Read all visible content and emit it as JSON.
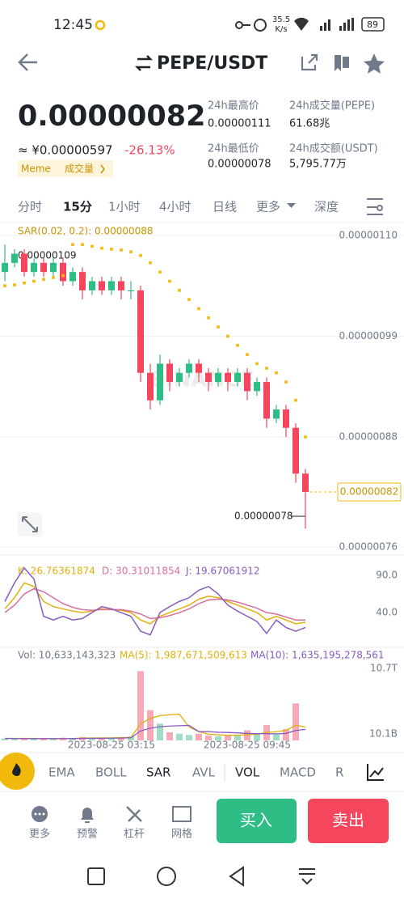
{
  "status_bar": {
    "time": "12:45",
    "speed": "35.5",
    "speed_unit": "K/s",
    "battery": "89"
  },
  "header": {
    "title": "PEPE/USDT"
  },
  "price": {
    "last": "0.00000082",
    "cny": "≈ ¥0.00000597",
    "change": "-26.13%",
    "tags": [
      "Meme",
      "成交量"
    ]
  },
  "stats": [
    {
      "label": "24h最高价",
      "value": "0.00000111"
    },
    {
      "label": "24h成交量(PEPE)",
      "value": "61.68兆"
    },
    {
      "label": "24h最低价",
      "value": "0.00000078"
    },
    {
      "label": "24h成交额(USDT)",
      "value": "5,795.77万"
    }
  ],
  "tabs": [
    "分时",
    "15分",
    "1小时",
    "4小时",
    "日线",
    "更多",
    "深度"
  ],
  "chart_data": [
    {
      "type": "candlestick",
      "watermark": "BINANCE",
      "up_color": "#2ebd85",
      "down_color": "#f6465d",
      "open": [
        1.06e-07,
        1.07e-07,
        1.08e-07,
        1.06e-07,
        1.07e-07,
        1.06e-07,
        1.07e-07,
        1.05e-07,
        1.06e-07,
        1.04e-07,
        1.05e-07,
        1.04e-07,
        1.05e-07,
        1.04e-07,
        1.04e-07,
        9.5e-08,
        9.2e-08,
        9.6e-08,
        9.4e-08,
        9.5e-08,
        9.6e-08,
        9.5e-08,
        9.4e-08,
        9.5e-08,
        9.4e-08,
        9.5e-08,
        9.3e-08,
        9.4e-08,
        9e-08,
        9.1e-08,
        8.9e-08,
        8.4e-08
      ],
      "high": [
        1.09e-07,
        1.085e-07,
        1.085e-07,
        1.075e-07,
        1.075e-07,
        1.075e-07,
        1.075e-07,
        1.065e-07,
        1.065e-07,
        1.055e-07,
        1.055e-07,
        1.055e-07,
        1.055e-07,
        1.05e-07,
        1.045e-07,
        9.6e-08,
        9.7e-08,
        9.65e-08,
        9.55e-08,
        9.65e-08,
        9.65e-08,
        9.55e-08,
        9.55e-08,
        9.55e-08,
        9.55e-08,
        9.55e-08,
        9.45e-08,
        9.45e-08,
        9.15e-08,
        9.15e-08,
        8.95e-08,
        8.45e-08
      ],
      "low": [
        1.05e-07,
        1.065e-07,
        1.055e-07,
        1.055e-07,
        1.055e-07,
        1.055e-07,
        1.045e-07,
        1.045e-07,
        1.03e-07,
        1.035e-07,
        1.035e-07,
        1.035e-07,
        1.03e-07,
        1.03e-07,
        9.4e-08,
        9.1e-08,
        9.15e-08,
        9.3e-08,
        9.35e-08,
        9.45e-08,
        9.4e-08,
        9.3e-08,
        9.35e-08,
        9.3e-08,
        9.35e-08,
        9.2e-08,
        9.25e-08,
        8.9e-08,
        8.95e-08,
        8.8e-08,
        8.3e-08,
        7.8e-08
      ],
      "close": [
        1.07e-07,
        1.08e-07,
        1.06e-07,
        1.07e-07,
        1.06e-07,
        1.07e-07,
        1.05e-07,
        1.06e-07,
        1.04e-07,
        1.05e-07,
        1.04e-07,
        1.05e-07,
        1.04e-07,
        1.04e-07,
        9.5e-08,
        9.2e-08,
        9.6e-08,
        9.4e-08,
        9.5e-08,
        9.6e-08,
        9.5e-08,
        9.4e-08,
        9.5e-08,
        9.4e-08,
        9.5e-08,
        9.3e-08,
        9.4e-08,
        9e-08,
        9.1e-08,
        8.9e-08,
        8.4e-08,
        8.2e-08
      ],
      "sar": {
        "name": "SAR(0.02, 0.2): 0.00000088",
        "color": "#f0b90b",
        "values": [
          1.045e-07,
          1.046e-07,
          1.048e-07,
          1.05e-07,
          1.052e-07,
          1.054e-07,
          1.056e-07,
          1.09e-07,
          1.09e-07,
          1.088e-07,
          1.086e-07,
          1.085e-07,
          1.084e-07,
          1.082e-07,
          1.078e-07,
          1.07e-07,
          1.06e-07,
          1.05e-07,
          1.04e-07,
          1.03e-07,
          1.02e-07,
          1.01e-07,
          1e-07,
          9.9e-08,
          9.8e-08,
          9.7e-08,
          9.6e-08,
          9.55e-08,
          9.5e-08,
          9.4e-08,
          9.2e-08,
          8.8e-08
        ]
      },
      "annotations": [
        "0.00000109",
        "0.00000078"
      ],
      "last_price": {
        "value": 8.2e-08,
        "label": "0.00000082"
      },
      "ylim": [
        7.52e-08,
        1.114e-07
      ],
      "yticks": [
        {
          "value": 1.1e-07,
          "label": "0.00000110"
        },
        {
          "value": 9.9e-08,
          "label": "0.00000099"
        },
        {
          "value": 8.8e-08,
          "label": "0.00000088"
        },
        {
          "value": 7.6e-08,
          "label": "0.00000076"
        }
      ],
      "grid": true
    },
    {
      "type": "line",
      "ylim": [
        -6.7,
        102
      ],
      "yticks": [
        {
          "value": 90,
          "label": "90.0"
        },
        {
          "value": 40,
          "label": "40.0"
        }
      ],
      "series": [
        {
          "name": "K: 26.76361874",
          "color": "#e0b00c",
          "values": [
            45,
            60,
            80,
            75,
            55,
            48,
            45,
            42,
            40,
            42,
            45,
            44,
            43,
            40,
            30,
            25,
            35,
            40,
            45,
            50,
            58,
            62,
            60,
            55,
            50,
            45,
            40,
            30,
            35,
            30,
            25,
            27
          ]
        },
        {
          "name": "D: 30.31011854",
          "color": "#d66ea0",
          "values": [
            40,
            50,
            65,
            72,
            68,
            60,
            52,
            47,
            44,
            43,
            44,
            44,
            44,
            42,
            38,
            32,
            33,
            36,
            40,
            45,
            52,
            57,
            58,
            57,
            54,
            50,
            46,
            40,
            38,
            34,
            30,
            30
          ]
        },
        {
          "name": "J: 19.67061912",
          "color": "#8a5bbd",
          "values": [
            55,
            80,
            100,
            85,
            35,
            30,
            35,
            30,
            32,
            40,
            48,
            45,
            40,
            35,
            15,
            10,
            40,
            48,
            55,
            60,
            70,
            75,
            65,
            50,
            42,
            35,
            28,
            12,
            30,
            20,
            15,
            20
          ]
        }
      ]
    },
    {
      "type": "bar",
      "ylim": [
        0,
        10700000000000.0
      ],
      "yticks": [
        {
          "value": 10700000000000.0,
          "label": "10.7T"
        },
        {
          "value": 10100000000.0,
          "label": "10.1B"
        }
      ],
      "xticks": [
        {
          "value": 11,
          "label": "2023-08-25 03:15"
        },
        {
          "value": 25,
          "label": "2023-08-25 09:45"
        }
      ],
      "series": [
        {
          "name": "Vol: 10,633,143,323",
          "up_color": "#a3dcc4",
          "down_color": "#f5aab6",
          "values": [
            300000000000.0,
            200000000000.0,
            300000000000.0,
            200000000000.0,
            300000000000.0,
            200000000000.0,
            400000000000.0,
            300000000000.0,
            500000000000.0,
            400000000000.0,
            300000000000.0,
            400000000000.0,
            500000000000.0,
            600000000000.0,
            10300000000000.0,
            4500000000000.0,
            2500000000000.0,
            1200000000000.0,
            1000000000000.0,
            800000000000.0,
            1000000000000.0,
            700000000000.0,
            600000000000.0,
            800000000000.0,
            700000000000.0,
            1500000000000.0,
            1000000000000.0,
            2300000000000.0,
            900000000000.0,
            1700000000000.0,
            5500000000000.0,
            10633143323
          ]
        }
      ],
      "lines": [
        {
          "name": "MA(5): 1,987,671,509,613",
          "color": "#e0b00c",
          "values": [
            300000000000.0,
            300000000000.0,
            300000000000.0,
            300000000000.0,
            260000000000.0,
            240000000000.0,
            280000000000.0,
            280000000000.0,
            340000000000.0,
            360000000000.0,
            380000000000.0,
            380000000000.0,
            420000000000.0,
            440000000000.0,
            2460000000000.0,
            3260000000000.0,
            3680000000000.0,
            3820000000000.0,
            3900000000000.0,
            2000000000000.0,
            1300000000000.0,
            940000000000.0,
            820000000000.0,
            780000000000.0,
            760000000000.0,
            860000000000.0,
            920000000000.0,
            1200000000000.0,
            1280000000000.0,
            1480000000000.0,
            2280000000000.0,
            1987671509613
          ]
        },
        {
          "name": "MA(10): 1,635,195,278,561",
          "color": "#8a5bbd",
          "values": [
            300000000000.0,
            280000000000.0,
            270000000000.0,
            260000000000.0,
            260000000000.0,
            260000000000.0,
            270000000000.0,
            280000000000.0,
            300000000000.0,
            310000000000.0,
            310000000000.0,
            330000000000.0,
            350000000000.0,
            390000000000.0,
            1400000000000.0,
            1820000000000.0,
            2040000000000.0,
            2130000000000.0,
            2180000000000.0,
            2230000000000.0,
            1300000000000.0,
            1300000000000.0,
            1210000000000.0,
            1180000000000.0,
            1120000000000.0,
            1030000000000.0,
            1000000000000.0,
            1000000000000.0,
            980000000000.0,
            1030000000000.0,
            1470000000000.0,
            1635195278561
          ]
        }
      ]
    }
  ],
  "indicator_tabs": [
    "EMA",
    "BOLL",
    "SAR",
    "AVL",
    "VOL",
    "MACD",
    "R"
  ],
  "bottom_bar": {
    "items": [
      "更多",
      "预警",
      "杠杆",
      "网格"
    ],
    "buy": "买入",
    "sell": "卖出"
  }
}
